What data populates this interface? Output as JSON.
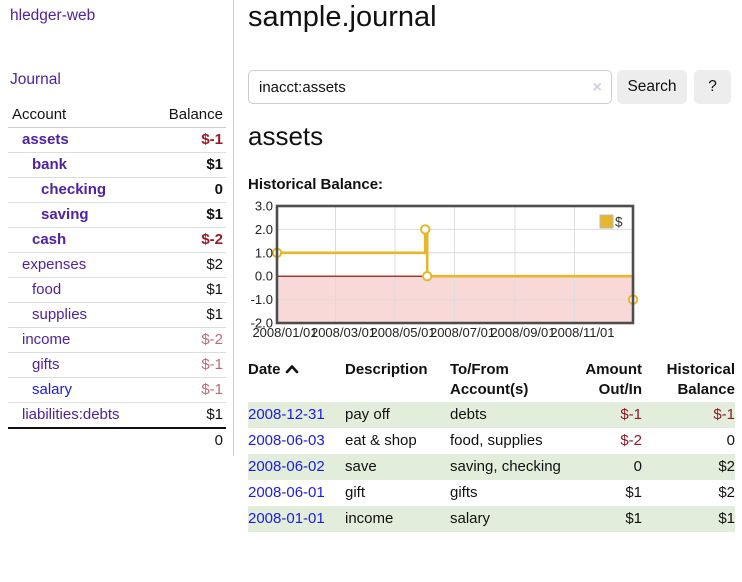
{
  "colors": {
    "accent_purple": "#4e22a0",
    "link_blue": "#1c1ce0",
    "negative_strong": "#9a1b28",
    "negative_muted": "#bd6a76",
    "row_stripe_green": "#e2eedb",
    "chart_line_gold": "#e8b62c",
    "chart_negative_fill": "#f9d8d8",
    "chart_zero_line": "#8b0000",
    "chart_grid": "#dcdcdc",
    "chart_border": "#4d4d4d"
  },
  "sidebar": {
    "brand": "hledger-web",
    "nav_journal": "Journal",
    "accounts": {
      "col_account": "Account",
      "col_balance": "Balance",
      "rows": [
        {
          "name": "assets",
          "balance": "$-1",
          "indent": 1,
          "bold": true,
          "balance_style": "negative"
        },
        {
          "name": "bank",
          "balance": "$1",
          "indent": 2,
          "bold": true,
          "balance_style": "normal"
        },
        {
          "name": "checking",
          "balance": "0",
          "indent": 3,
          "bold": true,
          "balance_style": "normal"
        },
        {
          "name": "saving",
          "balance": "$1",
          "indent": 3,
          "bold": true,
          "balance_style": "normal"
        },
        {
          "name": "cash",
          "balance": "$-2",
          "indent": 2,
          "bold": true,
          "balance_style": "negative"
        },
        {
          "name": "expenses",
          "balance": "$2",
          "indent": 1,
          "bold": false,
          "balance_style": "normal"
        },
        {
          "name": "food",
          "balance": "$1",
          "indent": 2,
          "bold": false,
          "balance_style": "normal"
        },
        {
          "name": "supplies",
          "balance": "$1",
          "indent": 2,
          "bold": false,
          "balance_style": "normal"
        },
        {
          "name": "income",
          "balance": "$-2",
          "indent": 1,
          "bold": false,
          "balance_style": "negative-muted"
        },
        {
          "name": "gifts",
          "balance": "$-1",
          "indent": 2,
          "bold": false,
          "balance_style": "negative-muted"
        },
        {
          "name": "salary",
          "balance": "$-1",
          "indent": 2,
          "bold": false,
          "balance_style": "negative-muted",
          "link_color": "blue"
        },
        {
          "name": "liabilities:debts",
          "balance": "$1",
          "indent": 1,
          "bold": false,
          "balance_style": "normal"
        }
      ],
      "total": "0"
    }
  },
  "main": {
    "title": "sample.journal",
    "search": {
      "value": "inacct:assets",
      "clear_icon": "×",
      "button": "Search",
      "help": "?"
    },
    "heading": "assets",
    "chart_label": "Historical Balance:"
  },
  "chart_data": {
    "type": "line",
    "step": true,
    "title": "Historical Balance:",
    "x_range": [
      "2008-01-01",
      "2008-12-31"
    ],
    "x_ticks": [
      "2008/01/01",
      "2008/03/01",
      "2008/05/01",
      "2008/07/01",
      "2008/09/01",
      "2008/11/01"
    ],
    "y_ticks": [
      "3.0",
      "2.0",
      "1.0",
      "0.0",
      "-1.0",
      "-2.0"
    ],
    "ylim": [
      -2,
      3
    ],
    "grid": true,
    "negative_region": true,
    "legend": {
      "label": "$",
      "position": "top-right"
    },
    "series": [
      {
        "name": "$",
        "color": "#e8b62c",
        "points": [
          [
            "2008-01-01",
            1
          ],
          [
            "2008-06-01",
            2
          ],
          [
            "2008-06-03",
            0
          ],
          [
            "2008-12-31",
            -1
          ]
        ]
      }
    ]
  },
  "register": {
    "headers": [
      {
        "label": "Date",
        "sorted": "asc"
      },
      {
        "label": "Description"
      },
      {
        "label": "To/From Account(s)"
      },
      {
        "label": "Amount Out/In"
      },
      {
        "label": "Historical Balance"
      }
    ],
    "rows": [
      {
        "date": "2008-12-31",
        "description": "pay off",
        "accounts": "debts",
        "amount": "$-1",
        "balance": "$-1",
        "amount_neg": true,
        "balance_neg": true
      },
      {
        "date": "2008-06-03",
        "description": "eat & shop",
        "accounts": "food, supplies",
        "amount": "$-2",
        "balance": "0",
        "amount_neg": true,
        "balance_neg": false
      },
      {
        "date": "2008-06-02",
        "description": "save",
        "accounts": "saving, checking",
        "amount": "0",
        "balance": "$2",
        "amount_neg": false,
        "balance_neg": false
      },
      {
        "date": "2008-06-01",
        "description": "gift",
        "accounts": "gifts",
        "amount": "$1",
        "balance": "$2",
        "amount_neg": false,
        "balance_neg": false
      },
      {
        "date": "2008-01-01",
        "description": "income",
        "accounts": "salary",
        "amount": "$1",
        "balance": "$1",
        "amount_neg": false,
        "balance_neg": false
      }
    ]
  }
}
